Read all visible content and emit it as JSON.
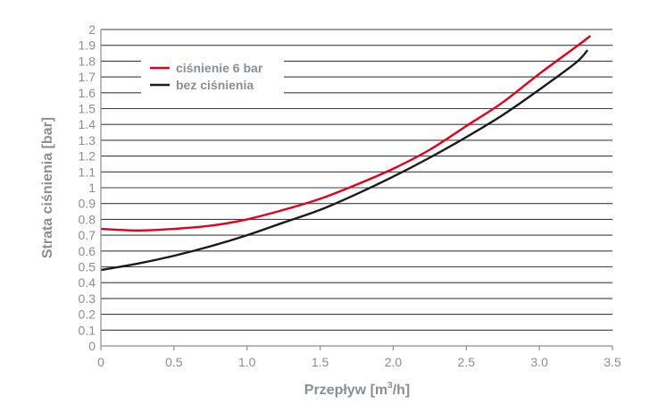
{
  "chart_data": {
    "type": "line",
    "xlabel": "Przepływ [m³/h]",
    "xlabel_main": "Przepływ [m",
    "xlabel_sup": "3",
    "xlabel_end": "/h]",
    "ylabel": "Strata ciśnienia [bar]",
    "xlim": [
      0,
      3.5
    ],
    "ylim": [
      0,
      2
    ],
    "x_ticks": [
      "0",
      "0.5",
      "1.0",
      "1.5",
      "2.0",
      "2.5",
      "3.0",
      "3.5"
    ],
    "y_ticks": [
      "0",
      "0.1",
      "0.2",
      "0.3",
      "0.4",
      "0.5",
      "0.6",
      "0.7",
      "0.8",
      "0.9",
      "1",
      "1.1",
      "1.2",
      "1.3",
      "1.4",
      "1.5",
      "1.6",
      "1.7",
      "1.8",
      "1.9",
      "2"
    ],
    "grid": "horizontal",
    "legend_position": "top-left",
    "series": [
      {
        "name": "ciśnienie 6 bar",
        "color": "#e3001b",
        "x": [
          0,
          0.25,
          0.5,
          0.75,
          1.0,
          1.25,
          1.5,
          1.75,
          2.0,
          2.25,
          2.5,
          2.75,
          3.0,
          3.25,
          3.35
        ],
        "y": [
          0.74,
          0.73,
          0.74,
          0.76,
          0.8,
          0.86,
          0.93,
          1.02,
          1.12,
          1.24,
          1.39,
          1.54,
          1.72,
          1.89,
          1.96
        ]
      },
      {
        "name": "bez ciśnienia",
        "color": "#1a1a1a",
        "x": [
          0,
          0.25,
          0.5,
          0.75,
          1.0,
          1.25,
          1.5,
          1.75,
          2.0,
          2.25,
          2.5,
          2.75,
          3.0,
          3.25,
          3.33
        ],
        "y": [
          0.48,
          0.52,
          0.57,
          0.63,
          0.7,
          0.78,
          0.86,
          0.96,
          1.07,
          1.19,
          1.32,
          1.46,
          1.62,
          1.79,
          1.87
        ]
      }
    ]
  }
}
